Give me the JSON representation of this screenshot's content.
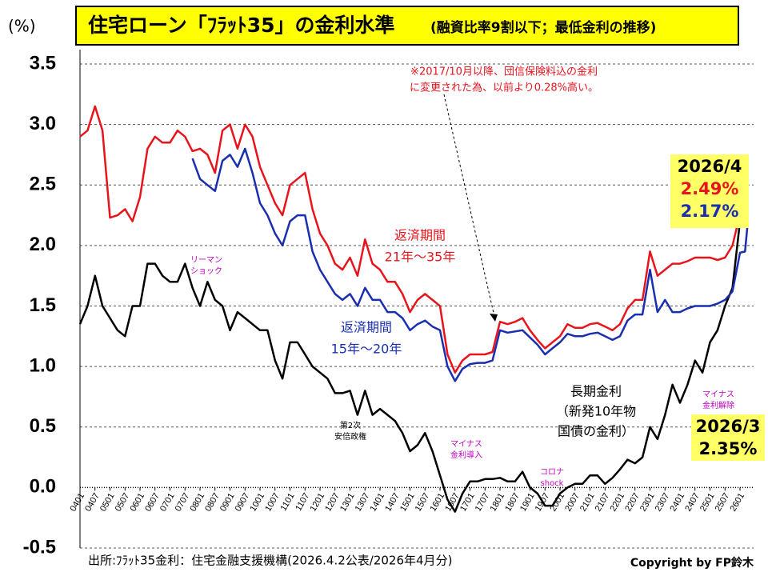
{
  "chart_data": {
    "type": "line",
    "title": "住宅ローン「ﾌﾗｯﾄ35」の金利水準",
    "subtitle": "(融資比率9割以下；最低金利の推移)",
    "y_unit": "(%)",
    "note_lines": [
      "※2017/10月以降、団信保険料込の金利",
      "に変更された為、以前より0.28%高い。"
    ],
    "source": "出所:ﾌﾗｯﾄ35金利：住宅金融支援機構(2026.4.2公表/2026年4月分)",
    "copyright": "Copyright by FP鈴木",
    "xlim": [
      0,
      268
    ],
    "ylim": [
      -0.5,
      3.5
    ],
    "grid": true,
    "yticks": [
      3.5,
      {
        "value": 3,
        "label": "3.0"
      },
      2.5,
      {
        "value": 2,
        "label": "2.0"
      },
      1.5,
      {
        "value": 1,
        "label": "1.0"
      },
      0.5,
      {
        "value": 0,
        "label": "0.0"
      },
      -0.5
    ],
    "xticks": [
      {
        "value": 0,
        "label": "0401"
      },
      {
        "value": 6,
        "label": "0407"
      },
      {
        "value": 12,
        "label": "0501"
      },
      {
        "value": 18,
        "label": "0507"
      },
      {
        "value": 24,
        "label": "0601"
      },
      {
        "value": 30,
        "label": "0607"
      },
      {
        "value": 36,
        "label": "0701"
      },
      {
        "value": 42,
        "label": "0707"
      },
      {
        "value": 48,
        "label": "0801"
      },
      {
        "value": 54,
        "label": "0807"
      },
      {
        "value": 60,
        "label": "0901"
      },
      {
        "value": 66,
        "label": "0907"
      },
      {
        "value": 72,
        "label": "1001"
      },
      {
        "value": 78,
        "label": "1007"
      },
      {
        "value": 84,
        "label": "1101"
      },
      {
        "value": 90,
        "label": "1107"
      },
      {
        "value": 96,
        "label": "1201"
      },
      {
        "value": 102,
        "label": "1207"
      },
      {
        "value": 108,
        "label": "1301"
      },
      {
        "value": 114,
        "label": "1307"
      },
      {
        "value": 120,
        "label": "1401"
      },
      {
        "value": 126,
        "label": "1407"
      },
      {
        "value": 132,
        "label": "1501"
      },
      {
        "value": 138,
        "label": "1507"
      },
      {
        "value": 144,
        "label": "1601"
      },
      {
        "value": 150,
        "label": "1607"
      },
      {
        "value": 156,
        "label": "1701"
      },
      {
        "value": 162,
        "label": "1707"
      },
      {
        "value": 168,
        "label": "1801"
      },
      {
        "value": 174,
        "label": "1807"
      },
      {
        "value": 180,
        "label": "1901"
      },
      {
        "value": 186,
        "label": "1907"
      },
      {
        "value": 192,
        "label": "2001"
      },
      {
        "value": 198,
        "label": "2007"
      },
      {
        "value": 204,
        "label": "2101"
      },
      {
        "value": 210,
        "label": "2107"
      },
      {
        "value": 216,
        "label": "2201"
      },
      {
        "value": 222,
        "label": "2207"
      },
      {
        "value": 228,
        "label": "2301"
      },
      {
        "value": 234,
        "label": "2307"
      },
      {
        "value": 240,
        "label": "2401"
      },
      {
        "value": 246,
        "label": "2407"
      },
      {
        "value": 252,
        "label": "2501"
      },
      {
        "value": 258,
        "label": "2507"
      },
      {
        "value": 264,
        "label": "2601"
      }
    ],
    "x": [
      0,
      3,
      6,
      9,
      12,
      15,
      18,
      21,
      24,
      27,
      30,
      33,
      36,
      39,
      42,
      45,
      48,
      51,
      54,
      57,
      60,
      63,
      66,
      69,
      72,
      75,
      78,
      81,
      84,
      87,
      90,
      93,
      96,
      99,
      102,
      105,
      108,
      111,
      114,
      117,
      120,
      123,
      126,
      129,
      132,
      135,
      138,
      141,
      144,
      147,
      150,
      153,
      156,
      159,
      162,
      165,
      168,
      171,
      174,
      177,
      180,
      183,
      186,
      189,
      192,
      195,
      198,
      201,
      204,
      207,
      210,
      213,
      216,
      219,
      222,
      225,
      228,
      231,
      234,
      237,
      240,
      243,
      246,
      249,
      252,
      255,
      258,
      261,
      264,
      266,
      267
    ],
    "series": [
      {
        "name_lines": [
          "返済期間",
          "21年～35年"
        ],
        "color": "#e8141c",
        "values": [
          2.9,
          2.95,
          3.15,
          2.95,
          2.23,
          2.25,
          2.3,
          2.2,
          2.4,
          2.8,
          2.9,
          2.85,
          2.85,
          2.95,
          2.9,
          2.78,
          2.8,
          2.75,
          2.6,
          2.95,
          3.0,
          2.8,
          3.0,
          2.9,
          2.65,
          2.5,
          2.35,
          2.25,
          2.5,
          2.55,
          2.6,
          2.3,
          2.1,
          2.0,
          1.85,
          1.8,
          1.9,
          1.75,
          2.05,
          1.85,
          1.8,
          1.7,
          1.7,
          1.6,
          1.45,
          1.55,
          1.6,
          1.55,
          1.5,
          1.1,
          0.95,
          1.05,
          1.1,
          1.1,
          1.1,
          1.12,
          1.37,
          1.35,
          1.37,
          1.4,
          1.3,
          1.22,
          1.15,
          1.2,
          1.25,
          1.35,
          1.32,
          1.32,
          1.35,
          1.36,
          1.33,
          1.3,
          1.35,
          1.48,
          1.55,
          1.55,
          1.95,
          1.75,
          1.8,
          1.85,
          1.85,
          1.87,
          1.9,
          1.9,
          1.9,
          1.88,
          1.9,
          2.0,
          2.26,
          2.3,
          2.49
        ]
      },
      {
        "name_lines": [
          "返済期間",
          "15年～20年"
        ],
        "color": "#1a2fb0",
        "values": [
          null,
          null,
          null,
          null,
          null,
          null,
          null,
          null,
          null,
          null,
          null,
          null,
          null,
          null,
          null,
          2.72,
          2.55,
          2.5,
          2.45,
          2.7,
          2.75,
          2.65,
          2.8,
          2.6,
          2.35,
          2.25,
          2.1,
          2.0,
          2.2,
          2.25,
          2.25,
          1.95,
          1.8,
          1.7,
          1.6,
          1.55,
          1.6,
          1.5,
          1.65,
          1.55,
          1.55,
          1.45,
          1.45,
          1.4,
          1.3,
          1.35,
          1.38,
          1.33,
          1.3,
          1.0,
          0.88,
          0.98,
          1.02,
          1.03,
          1.03,
          1.05,
          1.3,
          1.28,
          1.29,
          1.3,
          1.24,
          1.18,
          1.1,
          1.15,
          1.2,
          1.27,
          1.25,
          1.25,
          1.27,
          1.28,
          1.25,
          1.22,
          1.25,
          1.38,
          1.43,
          1.43,
          1.8,
          1.45,
          1.55,
          1.45,
          1.45,
          1.48,
          1.5,
          1.5,
          1.5,
          1.52,
          1.55,
          1.62,
          1.94,
          1.95,
          2.17
        ]
      },
      {
        "name_lines": [
          "長期金利",
          "（新発10年物",
          "国債の金利）"
        ],
        "color": "#000000",
        "values": [
          1.35,
          1.5,
          1.75,
          1.5,
          1.4,
          1.3,
          1.25,
          1.5,
          1.5,
          1.85,
          1.85,
          1.75,
          1.7,
          1.7,
          1.85,
          1.65,
          1.5,
          1.7,
          1.55,
          1.5,
          1.3,
          1.45,
          1.4,
          1.35,
          1.3,
          1.3,
          1.05,
          0.9,
          1.2,
          1.2,
          1.1,
          1.0,
          0.95,
          0.9,
          0.78,
          0.78,
          0.8,
          0.6,
          0.8,
          0.6,
          0.65,
          0.6,
          0.55,
          0.45,
          0.3,
          0.35,
          0.45,
          0.3,
          0.1,
          -0.1,
          -0.2,
          -0.05,
          0.05,
          0.05,
          0.07,
          0.07,
          0.08,
          0.05,
          0.05,
          0.13,
          0.0,
          -0.05,
          -0.15,
          -0.15,
          -0.05,
          0.0,
          0.03,
          0.03,
          0.1,
          0.1,
          0.03,
          0.08,
          0.15,
          0.23,
          0.2,
          0.25,
          0.5,
          0.4,
          0.6,
          0.85,
          0.7,
          0.85,
          1.05,
          0.95,
          1.2,
          1.3,
          1.5,
          1.65,
          2.2,
          2.35,
          null
        ]
      }
    ],
    "events": [
      {
        "lines": [
          "リーマン",
          "ショック"
        ]
      },
      {
        "lines": [
          "第2次",
          "安倍政権"
        ]
      },
      {
        "lines": [
          "マイナス",
          "金利導入"
        ]
      },
      {
        "lines": [
          "コロナ",
          "shock"
        ]
      },
      {
        "lines": [
          "マイナス",
          "金利解除"
        ]
      }
    ],
    "callouts": [
      {
        "date": "2026/4",
        "labels": [
          "2.49%",
          "2.17%"
        ]
      },
      {
        "date": "2026/3",
        "labels": [
          "2.35%"
        ]
      }
    ]
  }
}
